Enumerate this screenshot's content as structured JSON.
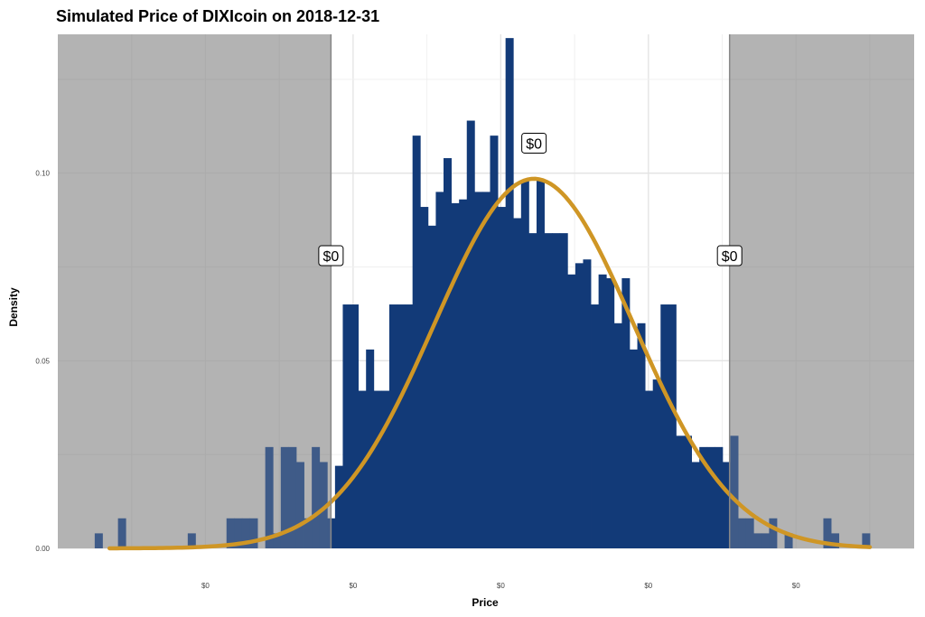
{
  "chart_data": {
    "type": "bar",
    "title": "Simulated Price of DIXIcoin on 2018-12-31",
    "xlabel": "Price",
    "ylabel": "Density",
    "x_tick_labels": [
      "$0",
      "$0",
      "$0",
      "$0",
      "$0"
    ],
    "y_ticks": [
      0.0,
      0.05,
      0.1
    ],
    "y_tick_labels": [
      "0.00",
      "0.05",
      "0.10"
    ],
    "ylim": [
      0,
      0.137
    ],
    "grid": true,
    "legend": "none",
    "bar_color": "#123a78",
    "curve_color": "#cf9625",
    "shade_color": "#b3b3b3",
    "guide_line_color": "#888888",
    "bins": {
      "x_start": -5.5,
      "x_end": 5.0,
      "values": [
        0.004,
        0.0,
        0.0,
        0.008,
        0.0,
        0.0,
        0.0,
        0.0,
        0.0,
        0.0,
        0.0,
        0.0,
        0.004,
        0.0,
        0.0,
        0.0,
        0.0,
        0.008,
        0.008,
        0.008,
        0.008,
        0.0,
        0.027,
        0.004,
        0.027,
        0.027,
        0.023,
        0.008,
        0.027,
        0.023,
        0.008,
        0.022,
        0.065,
        0.065,
        0.042,
        0.053,
        0.042,
        0.042,
        0.065,
        0.065,
        0.065,
        0.11,
        0.091,
        0.086,
        0.095,
        0.104,
        0.092,
        0.093,
        0.114,
        0.095,
        0.095,
        0.11,
        0.091,
        0.136,
        0.088,
        0.098,
        0.084,
        0.098,
        0.084,
        0.084,
        0.084,
        0.073,
        0.076,
        0.077,
        0.065,
        0.073,
        0.072,
        0.06,
        0.072,
        0.053,
        0.06,
        0.042,
        0.045,
        0.065,
        0.065,
        0.03,
        0.03,
        0.023,
        0.027,
        0.027,
        0.027,
        0.023,
        0.03,
        0.008,
        0.008,
        0.004,
        0.004,
        0.008,
        0.0,
        0.004,
        0.0,
        0.0,
        0.0,
        0.0,
        0.008,
        0.004,
        0.0,
        0.0,
        0.0,
        0.004
      ]
    },
    "normal_curve": {
      "mean": 0.45,
      "sd": 1.35,
      "peak_density": 0.0985,
      "x_from": -5.3,
      "x_to": 5.0
    },
    "interval": {
      "low": -2.3,
      "high": 3.1
    },
    "callouts": [
      {
        "label": "$0",
        "x": -2.3,
        "y": 0.078
      },
      {
        "label": "$0",
        "x": 0.45,
        "y": 0.108
      },
      {
        "label": "$0",
        "x": 3.1,
        "y": 0.078
      }
    ]
  }
}
